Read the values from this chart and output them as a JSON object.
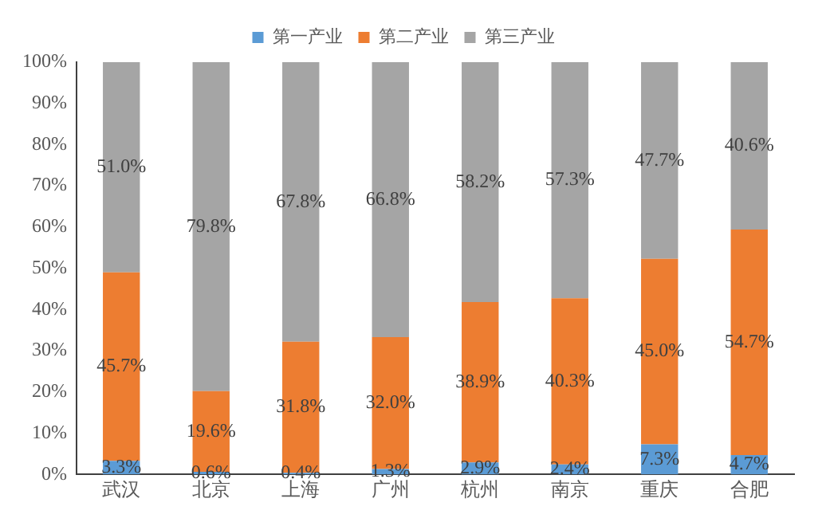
{
  "chart_data": {
    "type": "bar",
    "stacked": true,
    "categories": [
      "武汉",
      "北京",
      "上海",
      "广州",
      "杭州",
      "南京",
      "重庆",
      "合肥"
    ],
    "series": [
      {
        "name": "第一产业",
        "color": "#5b9bd5",
        "values": [
          3.3,
          0.6,
          0.4,
          1.3,
          2.9,
          2.4,
          7.3,
          4.7
        ],
        "value_labels": [
          "3.3%",
          "0.6%",
          "0.4%",
          "1.3%",
          "2.9%",
          "2.4%",
          "7.3%",
          "4.7%"
        ]
      },
      {
        "name": "第二产业",
        "color": "#ed7d31",
        "values": [
          45.7,
          19.6,
          31.8,
          32.0,
          38.9,
          40.3,
          45.0,
          54.7
        ],
        "value_labels": [
          "45.7%",
          "19.6%",
          "31.8%",
          "32.0%",
          "38.9%",
          "40.3%",
          "45.0%",
          "54.7%"
        ]
      },
      {
        "name": "第三产业",
        "color": "#a5a5a5",
        "values": [
          51.0,
          79.8,
          67.8,
          66.8,
          58.2,
          57.3,
          47.7,
          40.6
        ],
        "value_labels": [
          "51.0%",
          "79.8%",
          "67.8%",
          "66.8%",
          "58.2%",
          "57.3%",
          "47.7%",
          "40.6%"
        ]
      }
    ],
    "ylim": [
      0,
      100
    ],
    "yticks": [
      {
        "value": 0,
        "label": "0%"
      },
      {
        "value": 10,
        "label": "10%"
      },
      {
        "value": 20,
        "label": "20%"
      },
      {
        "value": 30,
        "label": "30%"
      },
      {
        "value": 40,
        "label": "40%"
      },
      {
        "value": 50,
        "label": "50%"
      },
      {
        "value": 60,
        "label": "60%"
      },
      {
        "value": 70,
        "label": "70%"
      },
      {
        "value": 80,
        "label": "80%"
      },
      {
        "value": 90,
        "label": "90%"
      },
      {
        "value": 100,
        "label": "100%"
      }
    ],
    "grid": false,
    "legend": "top"
  }
}
